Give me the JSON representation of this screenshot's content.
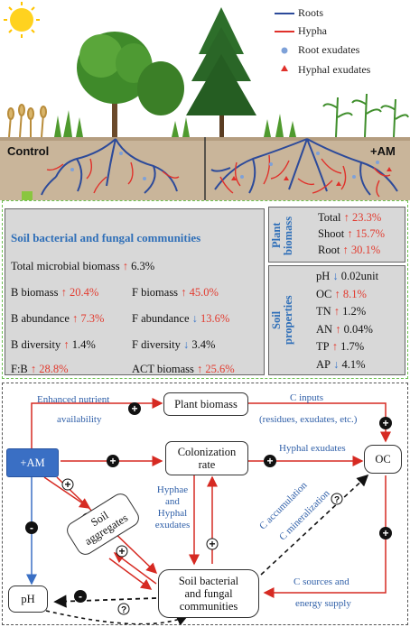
{
  "legend": {
    "roots": "Roots",
    "hypha": "Hypha",
    "root_exudates": "Root exudates",
    "hyphal_exudates": "Hyphal exudates"
  },
  "illustration": {
    "control_label": "Control",
    "am_label": "+AM"
  },
  "communities": {
    "title": "Soil bacterial and fungal communities",
    "rows": [
      {
        "label": "Total microbial biomass",
        "dir": "up",
        "value": "6.3%",
        "value_color": "black"
      },
      {
        "label": "B biomass",
        "dir": "up",
        "value": "20.4%",
        "value_color": "red"
      },
      {
        "label": "F biomass",
        "dir": "up",
        "value": "45.0%",
        "value_color": "red"
      },
      {
        "label": "B abundance",
        "dir": "up",
        "value": "7.3%",
        "value_color": "red"
      },
      {
        "label": "F abundance",
        "dir": "down",
        "value": "13.6%",
        "value_color": "red"
      },
      {
        "label": "B diversity",
        "dir": "up",
        "value": "1.4%",
        "value_color": "black"
      },
      {
        "label": "F diversity",
        "dir": "down",
        "value": "3.4%",
        "value_color": "black"
      },
      {
        "label": "F:B",
        "dir": "up",
        "value": "28.8%",
        "value_color": "red"
      },
      {
        "label": "ACT biomass",
        "dir": "up",
        "value": "25.6%",
        "value_color": "red"
      }
    ]
  },
  "plant_biomass": {
    "title_line1": "Plant",
    "title_line2": "biomass",
    "rows": [
      {
        "label": "Total",
        "dir": "up",
        "value": "23.3%"
      },
      {
        "label": "Shoot",
        "dir": "up",
        "value": "15.7%"
      },
      {
        "label": "Root",
        "dir": "up",
        "value": "30.1%"
      }
    ]
  },
  "soil_properties": {
    "title_line1": "Soil",
    "title_line2": "properties",
    "rows": [
      {
        "label": "pH",
        "dir": "down",
        "value": "0.02unit",
        "value_color": "black"
      },
      {
        "label": "OC",
        "dir": "up",
        "value": "8.1%",
        "value_color": "red"
      },
      {
        "label": "TN",
        "dir": "up",
        "value": "1.2%",
        "value_color": "black"
      },
      {
        "label": "AN",
        "dir": "up",
        "value": "0.04%",
        "value_color": "black"
      },
      {
        "label": "TP",
        "dir": "up",
        "value": "1.7%",
        "value_color": "black"
      },
      {
        "label": "AP",
        "dir": "down",
        "value": "4.1%",
        "value_color": "black"
      }
    ]
  },
  "diagram": {
    "nodes": {
      "am": "+AM",
      "plant_biomass": "Plant biomass",
      "colonization_line1": "Colonization",
      "colonization_line2": "rate",
      "oc": "OC",
      "soil_aggregates_line1": "Soil",
      "soil_aggregates_line2": "aggregates",
      "communities_line1": "Soil bacterial",
      "communities_line2": "and fungal",
      "communities_line3": "communities",
      "ph": "pH"
    },
    "labels": {
      "enhanced_line1": "Enhanced nutrient",
      "enhanced_line2": "availability",
      "c_inputs_line1": "C inputs",
      "c_inputs_line2": "(residues, exudates, etc.)",
      "hyphal_exudates": "Hyphal exudates",
      "hyphae_line1": "Hyphae",
      "hyphae_line2": "and",
      "hyphae_line3": "Hyphal",
      "hyphae_line4": "exudates",
      "c_accumulation": "C accumulation",
      "c_mineralization": "C mineralization",
      "c_sources_line1": "C sources and",
      "c_sources_line2": "energy supply"
    },
    "signs": {
      "plus": "+",
      "minus": "-",
      "question": "?"
    }
  },
  "colors": {
    "roots": "#2c4a9a",
    "hypha": "#e0302a",
    "accent_blue": "#2f6fb8",
    "am_box": "#3a6fc4",
    "green_arrow": "#8ac63f"
  }
}
